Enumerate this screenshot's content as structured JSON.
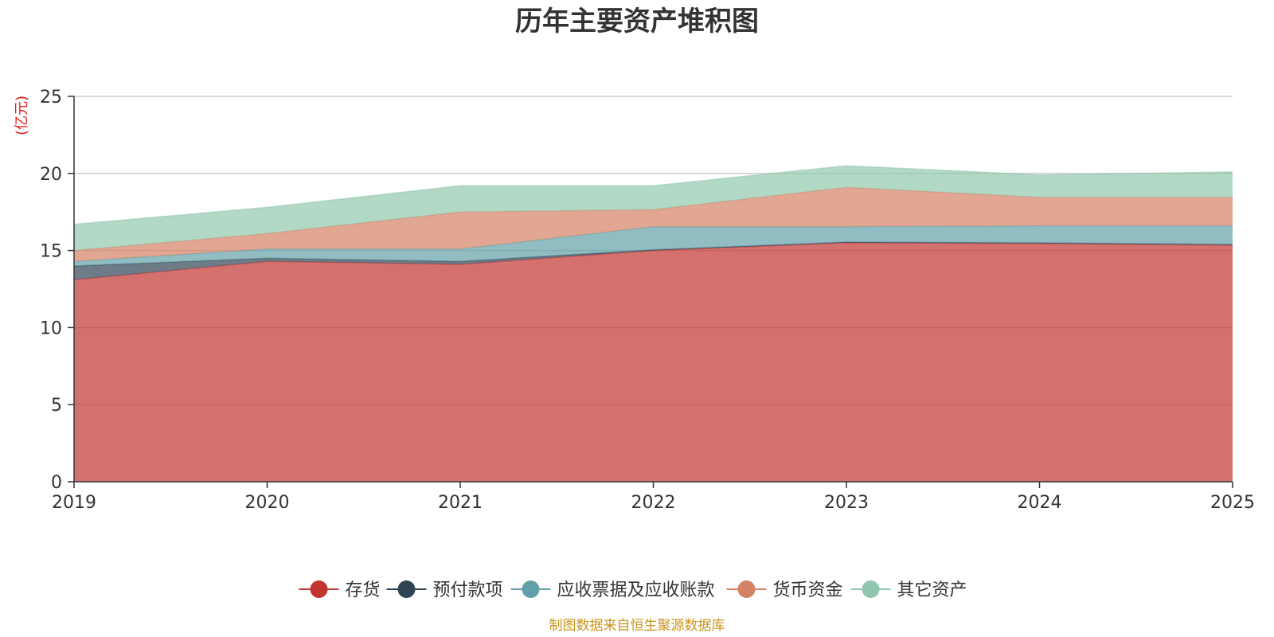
{
  "chart_data": {
    "type": "area",
    "stacked": true,
    "title": "历年主要资产堆积图",
    "ylabel": "(亿元)",
    "xlabel": "",
    "x": [
      "2019",
      "2020",
      "2021",
      "2022",
      "2023",
      "2024",
      "2025"
    ],
    "ylim": [
      0,
      25
    ],
    "yticks": [
      0,
      5,
      10,
      15,
      20,
      25
    ],
    "grid": true,
    "legend_position": "bottom",
    "series": [
      {
        "name": "存货",
        "color": "#c23531",
        "values": [
          13.1,
          14.3,
          14.1,
          15.0,
          15.5,
          15.45,
          15.35
        ]
      },
      {
        "name": "预付款项",
        "color": "#2f4554",
        "values": [
          0.9,
          0.2,
          0.2,
          0.05,
          0.05,
          0.05,
          0.05
        ]
      },
      {
        "name": "应收票据及应收账款",
        "color": "#61a0a8",
        "values": [
          0.3,
          0.6,
          0.8,
          1.5,
          1.0,
          1.1,
          1.2
        ]
      },
      {
        "name": "货币资金",
        "color": "#d48265",
        "values": [
          0.7,
          1.0,
          2.4,
          1.1,
          2.55,
          1.85,
          1.85
        ]
      },
      {
        "name": "其它资产",
        "color": "#91c7ae",
        "values": [
          1.7,
          1.7,
          1.7,
          1.55,
          1.4,
          1.45,
          1.65
        ]
      }
    ]
  },
  "footer": {
    "source": "制图数据来自恒生聚源数据库"
  }
}
